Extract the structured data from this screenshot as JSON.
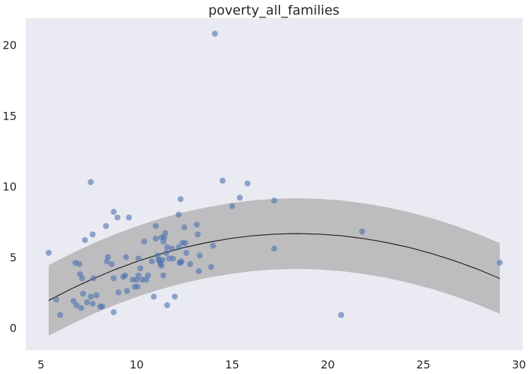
{
  "chart_data": {
    "type": "scatter",
    "title": "poverty_all_families",
    "xlabel": "",
    "ylabel": "",
    "xlim": [
      4.2,
      30.2
    ],
    "ylim": [
      -1.6,
      21.9
    ],
    "xticks": [
      5,
      10,
      15,
      20,
      25,
      30
    ],
    "yticks": [
      0,
      5,
      10,
      15,
      20
    ],
    "grid": false,
    "background": "#eaeaf2",
    "point_color": "#4c72b0",
    "fit_color": "#1a1a1a",
    "band_color": "#a9a9a9",
    "points": [
      [
        5.4,
        5.3
      ],
      [
        5.8,
        2.0
      ],
      [
        6.0,
        0.9
      ],
      [
        6.7,
        1.9
      ],
      [
        6.8,
        4.6
      ],
      [
        6.85,
        1.6
      ],
      [
        7.0,
        4.5
      ],
      [
        7.05,
        3.8
      ],
      [
        7.1,
        1.4
      ],
      [
        7.15,
        3.5
      ],
      [
        7.2,
        2.4
      ],
      [
        7.3,
        6.2
      ],
      [
        7.4,
        1.8
      ],
      [
        7.6,
        10.3
      ],
      [
        7.6,
        2.2
      ],
      [
        7.7,
        1.7
      ],
      [
        7.7,
        6.6
      ],
      [
        7.75,
        3.5
      ],
      [
        7.9,
        2.3
      ],
      [
        8.1,
        1.5
      ],
      [
        8.2,
        1.5
      ],
      [
        8.4,
        7.2
      ],
      [
        8.45,
        4.7
      ],
      [
        8.5,
        5.0
      ],
      [
        8.7,
        4.5
      ],
      [
        8.8,
        8.2
      ],
      [
        8.8,
        3.5
      ],
      [
        8.8,
        1.1
      ],
      [
        9.0,
        7.8
      ],
      [
        9.05,
        2.5
      ],
      [
        9.3,
        3.6
      ],
      [
        9.4,
        3.7
      ],
      [
        9.45,
        5.0
      ],
      [
        9.5,
        2.6
      ],
      [
        9.6,
        7.8
      ],
      [
        9.8,
        3.4
      ],
      [
        9.9,
        2.9
      ],
      [
        10.0,
        3.4
      ],
      [
        10.05,
        2.9
      ],
      [
        10.1,
        3.7
      ],
      [
        10.1,
        4.9
      ],
      [
        10.2,
        4.2
      ],
      [
        10.3,
        3.4
      ],
      [
        10.4,
        6.1
      ],
      [
        10.5,
        3.4
      ],
      [
        10.6,
        3.7
      ],
      [
        10.8,
        4.7
      ],
      [
        10.9,
        2.2
      ],
      [
        11.0,
        7.2
      ],
      [
        11.0,
        6.3
      ],
      [
        11.1,
        5.1
      ],
      [
        11.15,
        4.8
      ],
      [
        11.2,
        4.7
      ],
      [
        11.25,
        4.5
      ],
      [
        11.3,
        4.4
      ],
      [
        11.3,
        6.4
      ],
      [
        11.35,
        4.8
      ],
      [
        11.4,
        3.7
      ],
      [
        11.4,
        6.1
      ],
      [
        11.45,
        6.4
      ],
      [
        11.5,
        6.7
      ],
      [
        11.55,
        5.3
      ],
      [
        11.6,
        5.7
      ],
      [
        11.6,
        1.6
      ],
      [
        11.7,
        4.9
      ],
      [
        11.85,
        5.6
      ],
      [
        11.9,
        4.9
      ],
      [
        12.0,
        2.2
      ],
      [
        12.2,
        8.0
      ],
      [
        12.2,
        5.7
      ],
      [
        12.25,
        4.6
      ],
      [
        12.3,
        9.1
      ],
      [
        12.3,
        4.6
      ],
      [
        12.35,
        4.7
      ],
      [
        12.4,
        6.0
      ],
      [
        12.5,
        7.1
      ],
      [
        12.55,
        6.0
      ],
      [
        12.6,
        5.3
      ],
      [
        12.8,
        4.5
      ],
      [
        13.15,
        7.3
      ],
      [
        13.2,
        6.6
      ],
      [
        13.25,
        4.0
      ],
      [
        13.3,
        5.1
      ],
      [
        13.9,
        4.3
      ],
      [
        14.0,
        5.8
      ],
      [
        14.1,
        20.8
      ],
      [
        14.5,
        10.4
      ],
      [
        15.0,
        8.6
      ],
      [
        15.4,
        9.2
      ],
      [
        15.8,
        10.2
      ],
      [
        17.2,
        9.0
      ],
      [
        17.2,
        5.6
      ],
      [
        20.7,
        0.9
      ],
      [
        21.8,
        6.8
      ],
      [
        29.0,
        4.6
      ]
    ],
    "fit": {
      "x": [
        5.4,
        6.58,
        7.76,
        8.94,
        10.12,
        11.3,
        12.48,
        13.66,
        14.84,
        16.02,
        17.2,
        18.38,
        19.56,
        20.74,
        21.92,
        23.1,
        24.28,
        25.46,
        26.64,
        27.82,
        29.0
      ],
      "y": [
        1.93,
        2.61,
        3.23,
        3.81,
        4.33,
        4.81,
        5.23,
        5.6,
        5.92,
        6.19,
        6.41,
        6.57,
        6.69,
        6.75,
        6.76,
        6.72,
        6.63,
        6.48,
        6.28,
        6.03,
        5.73
      ],
      "y_plot": [
        1.93,
        2.75,
        3.49,
        4.15,
        4.73,
        5.24,
        5.67,
        6.02,
        6.3,
        6.5,
        6.62,
        6.66,
        6.62,
        6.5,
        6.3,
        6.02,
        5.67,
        5.24,
        4.73,
        4.15,
        3.49
      ],
      "band_halfwidth": 2.5
    }
  }
}
